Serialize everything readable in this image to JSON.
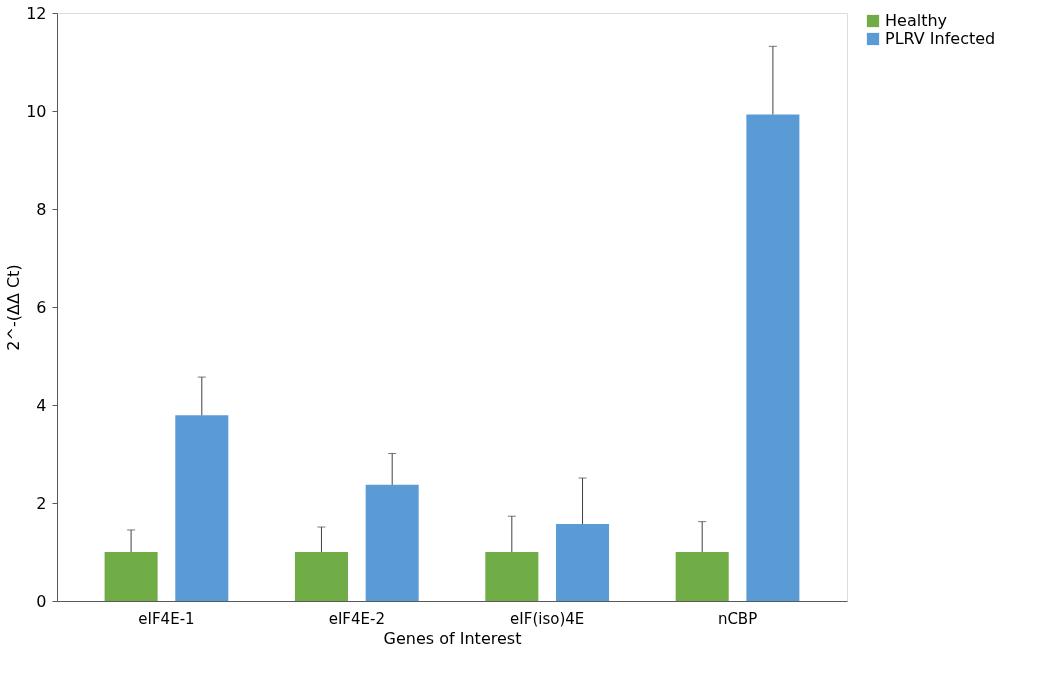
{
  "chart_data": {
    "type": "bar",
    "xlabel": "Genes of Interest",
    "ylabel": "2^-(ΔΔ Ct)",
    "categories": [
      "eIF4E-1",
      "eIF4E-2",
      "eIF(iso)4E",
      "nCBP"
    ],
    "series": [
      {
        "name": "Healthy",
        "color": "#70ad47",
        "values": [
          1,
          1,
          1,
          1
        ],
        "errors": [
          [
            1,
            1.45
          ],
          [
            1,
            1.51
          ],
          [
            1,
            1.73
          ],
          [
            1,
            1.62
          ]
        ]
      },
      {
        "name": "PLRV Infected",
        "color": "#5b9bd5",
        "values": [
          3.79,
          2.37,
          1.57,
          9.93
        ],
        "errors": [
          [
            3.79,
            4.57
          ],
          [
            2.37,
            3.01
          ],
          [
            1.57,
            2.51
          ],
          [
            9.93,
            11.32
          ]
        ]
      }
    ],
    "ylim": [
      0,
      12
    ],
    "yticks": [
      0,
      2,
      4,
      6,
      8,
      10,
      12
    ],
    "grid": false,
    "legend": "right"
  }
}
